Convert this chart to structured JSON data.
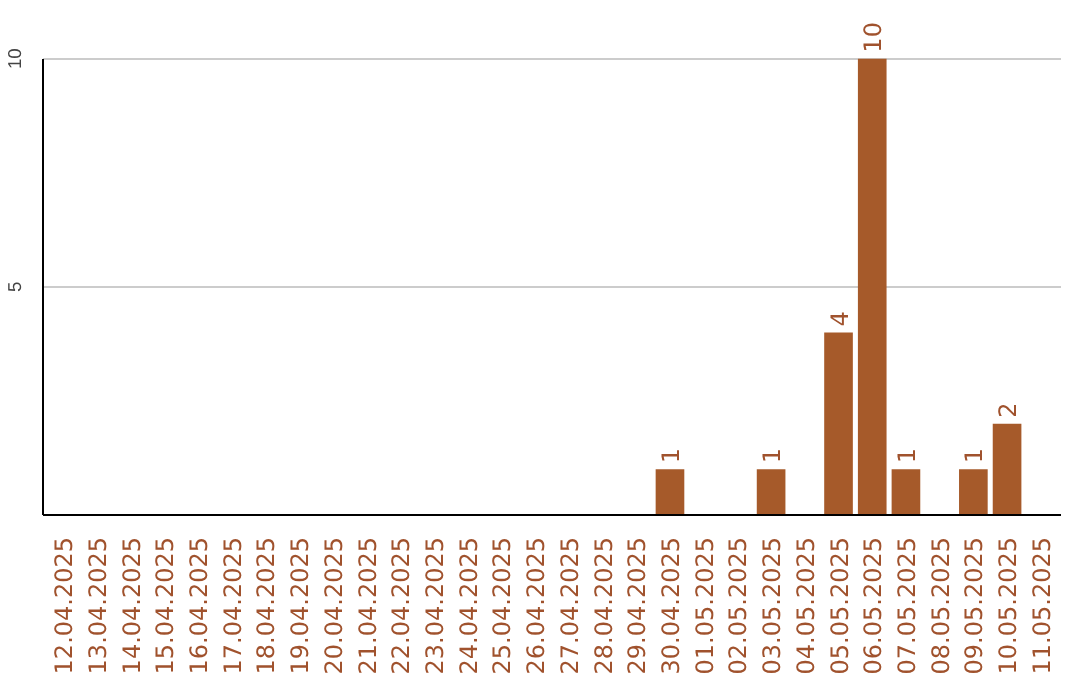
{
  "chart_data": {
    "type": "bar",
    "categories": [
      "12.04.2025",
      "13.04.2025",
      "14.04.2025",
      "15.04.2025",
      "16.04.2025",
      "17.04.2025",
      "18.04.2025",
      "19.04.2025",
      "20.04.2025",
      "21.04.2025",
      "22.04.2025",
      "23.04.2025",
      "24.04.2025",
      "25.04.2025",
      "26.04.2025",
      "27.04.2025",
      "28.04.2025",
      "29.04.2025",
      "30.04.2025",
      "01.05.2025",
      "02.05.2025",
      "03.05.2025",
      "04.05.2025",
      "05.05.2025",
      "06.05.2025",
      "07.05.2025",
      "08.05.2025",
      "09.05.2025",
      "10.05.2025",
      "11.05.2025"
    ],
    "values": [
      0,
      0,
      0,
      0,
      0,
      0,
      0,
      0,
      0,
      0,
      0,
      0,
      0,
      0,
      0,
      0,
      0,
      0,
      1,
      0,
      0,
      1,
      0,
      4,
      10,
      1,
      0,
      1,
      2,
      0
    ],
    "value_labels": [
      null,
      null,
      null,
      null,
      null,
      null,
      null,
      null,
      null,
      null,
      null,
      null,
      null,
      null,
      null,
      null,
      null,
      null,
      "1",
      null,
      null,
      "1",
      null,
      "4",
      "10",
      "1",
      null,
      "1",
      "2",
      null
    ],
    "color": "#a65a2a",
    "ylim": [
      0,
      10
    ],
    "yticks": [
      5,
      10
    ],
    "grid": "y"
  }
}
